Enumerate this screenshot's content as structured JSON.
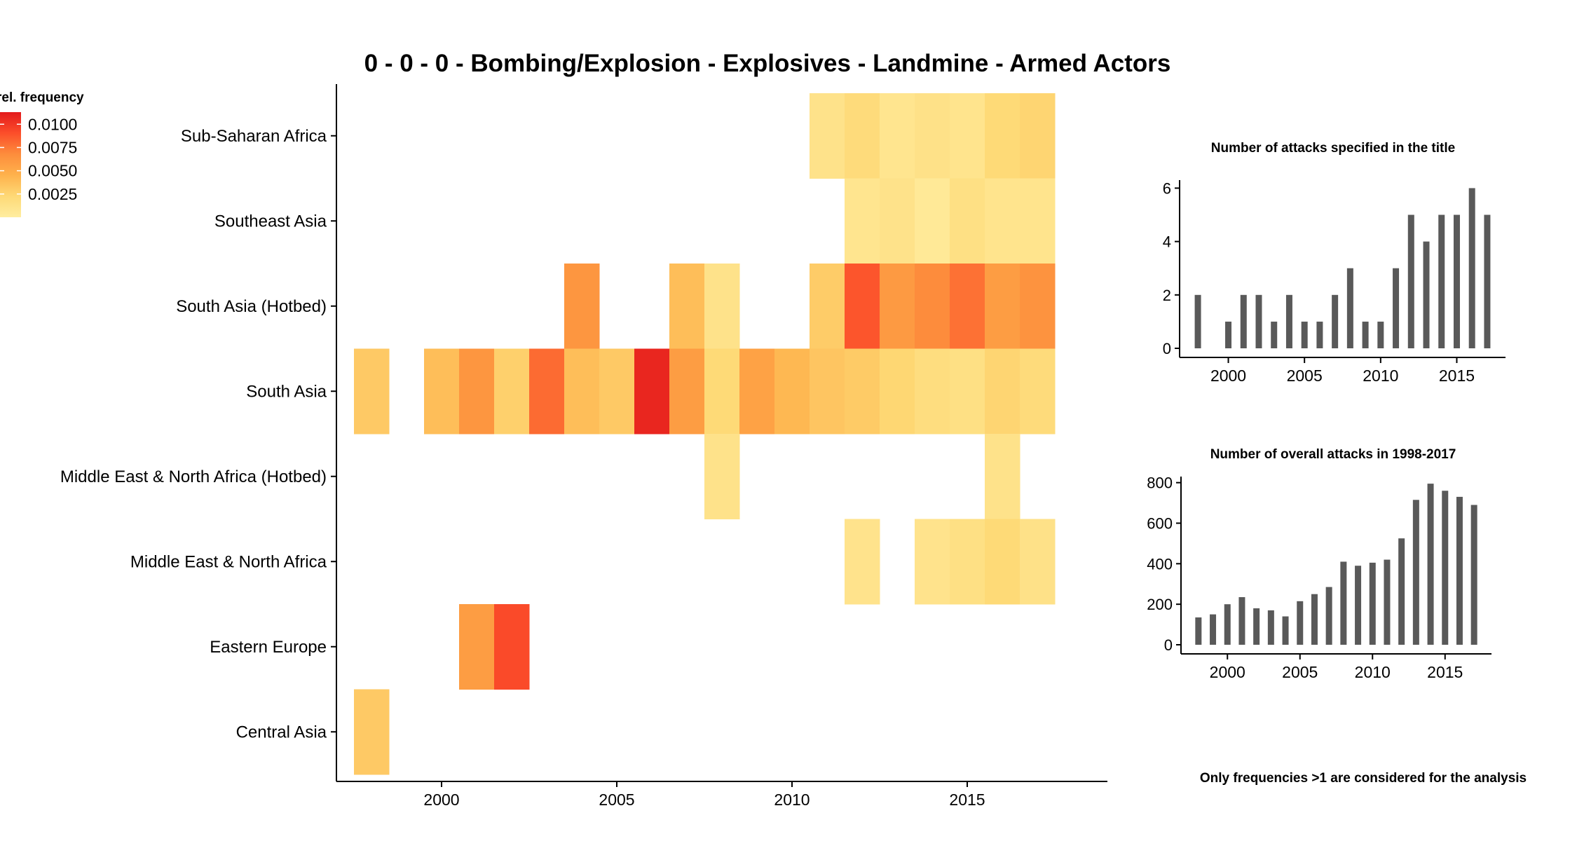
{
  "title": "0 - 0 - 0 - Bombing/Explosion - Explosives - Landmine - Armed Actors",
  "legend": {
    "title": "rel. frequency",
    "ticks": [
      "0.0100",
      "0.0075",
      "0.0050",
      "0.0025"
    ],
    "tick_values": [
      0.01,
      0.0075,
      0.005,
      0.0025
    ],
    "min": 0.0,
    "max": 0.0113,
    "colors": [
      "#ffeda0",
      "#fed976",
      "#feb24c",
      "#fd8d3c",
      "#fc4e2a",
      "#e31a1c"
    ]
  },
  "footnote": "Only frequencies >1 are considered for the analysis",
  "chart_data": [
    {
      "type": "heatmap",
      "title": "0 - 0 - 0 - Bombing/Explosion - Explosives - Landmine - Armed Actors",
      "x_ticks": [
        "2000",
        "2005",
        "2010",
        "2015"
      ],
      "x_tick_values": [
        2000,
        2005,
        2010,
        2015
      ],
      "xlim": [
        1997,
        2018
      ],
      "regions": [
        "Sub-Saharan Africa",
        "Southeast Asia",
        "South Asia (Hotbed)",
        "South Asia",
        "Middle East & North Africa (Hotbed)",
        "Middle East & North Africa",
        "Eastern Europe",
        "Central Asia"
      ],
      "cells": [
        {
          "region": "Sub-Saharan Africa",
          "year": 2011,
          "value": 0.0012
        },
        {
          "region": "Sub-Saharan Africa",
          "year": 2012,
          "value": 0.002
        },
        {
          "region": "Sub-Saharan Africa",
          "year": 2013,
          "value": 0.0009
        },
        {
          "region": "Sub-Saharan Africa",
          "year": 2014,
          "value": 0.0013
        },
        {
          "region": "Sub-Saharan Africa",
          "year": 2015,
          "value": 0.001
        },
        {
          "region": "Sub-Saharan Africa",
          "year": 2016,
          "value": 0.0022
        },
        {
          "region": "Sub-Saharan Africa",
          "year": 2017,
          "value": 0.0025
        },
        {
          "region": "Southeast Asia",
          "year": 2012,
          "value": 0.0009
        },
        {
          "region": "Southeast Asia",
          "year": 2013,
          "value": 0.0012
        },
        {
          "region": "Southeast Asia",
          "year": 2014,
          "value": 0.0005
        },
        {
          "region": "Southeast Asia",
          "year": 2015,
          "value": 0.0015
        },
        {
          "region": "Southeast Asia",
          "year": 2016,
          "value": 0.001
        },
        {
          "region": "Southeast Asia",
          "year": 2017,
          "value": 0.001
        },
        {
          "region": "South Asia (Hotbed)",
          "year": 2004,
          "value": 0.0062
        },
        {
          "region": "South Asia (Hotbed)",
          "year": 2007,
          "value": 0.0038
        },
        {
          "region": "South Asia (Hotbed)",
          "year": 2008,
          "value": 0.0012
        },
        {
          "region": "South Asia (Hotbed)",
          "year": 2011,
          "value": 0.003
        },
        {
          "region": "South Asia (Hotbed)",
          "year": 2012,
          "value": 0.0088
        },
        {
          "region": "South Asia (Hotbed)",
          "year": 2013,
          "value": 0.006
        },
        {
          "region": "South Asia (Hotbed)",
          "year": 2014,
          "value": 0.0068
        },
        {
          "region": "South Asia (Hotbed)",
          "year": 2015,
          "value": 0.0078
        },
        {
          "region": "South Asia (Hotbed)",
          "year": 2016,
          "value": 0.0058
        },
        {
          "region": "South Asia (Hotbed)",
          "year": 2017,
          "value": 0.0064
        },
        {
          "region": "South Asia",
          "year": 1998,
          "value": 0.0032
        },
        {
          "region": "South Asia",
          "year": 2000,
          "value": 0.0038
        },
        {
          "region": "South Asia",
          "year": 2001,
          "value": 0.0062
        },
        {
          "region": "South Asia",
          "year": 2002,
          "value": 0.0028
        },
        {
          "region": "South Asia",
          "year": 2003,
          "value": 0.008
        },
        {
          "region": "South Asia",
          "year": 2004,
          "value": 0.0038
        },
        {
          "region": "South Asia",
          "year": 2005,
          "value": 0.0032
        },
        {
          "region": "South Asia",
          "year": 2006,
          "value": 0.0108
        },
        {
          "region": "South Asia",
          "year": 2007,
          "value": 0.0058
        },
        {
          "region": "South Asia",
          "year": 2008,
          "value": 0.0022
        },
        {
          "region": "South Asia",
          "year": 2009,
          "value": 0.0055
        },
        {
          "region": "South Asia",
          "year": 2010,
          "value": 0.0042
        },
        {
          "region": "South Asia",
          "year": 2011,
          "value": 0.0034
        },
        {
          "region": "South Asia",
          "year": 2012,
          "value": 0.0031
        },
        {
          "region": "South Asia",
          "year": 2013,
          "value": 0.0024
        },
        {
          "region": "South Asia",
          "year": 2014,
          "value": 0.0018
        },
        {
          "region": "South Asia",
          "year": 2015,
          "value": 0.0015
        },
        {
          "region": "South Asia",
          "year": 2016,
          "value": 0.0025
        },
        {
          "region": "South Asia",
          "year": 2017,
          "value": 0.002
        },
        {
          "region": "Middle East & North Africa (Hotbed)",
          "year": 2008,
          "value": 0.0012
        },
        {
          "region": "Middle East & North Africa (Hotbed)",
          "year": 2016,
          "value": 0.0012
        },
        {
          "region": "Middle East & North Africa",
          "year": 2012,
          "value": 0.0011
        },
        {
          "region": "Middle East & North Africa",
          "year": 2014,
          "value": 0.0011
        },
        {
          "region": "Middle East & North Africa",
          "year": 2015,
          "value": 0.0015
        },
        {
          "region": "Middle East & North Africa",
          "year": 2016,
          "value": 0.0022
        },
        {
          "region": "Middle East & North Africa",
          "year": 2017,
          "value": 0.0013
        },
        {
          "region": "Eastern Europe",
          "year": 2001,
          "value": 0.0058
        },
        {
          "region": "Eastern Europe",
          "year": 2002,
          "value": 0.0092
        },
        {
          "region": "Central Asia",
          "year": 1998,
          "value": 0.0032
        }
      ]
    },
    {
      "type": "bar",
      "title": "Number of attacks specified in the title",
      "x": [
        1998,
        2000,
        2001,
        2002,
        2003,
        2004,
        2005,
        2006,
        2007,
        2008,
        2009,
        2010,
        2011,
        2012,
        2013,
        2014,
        2015,
        2016,
        2017
      ],
      "values": [
        2,
        1,
        2,
        2,
        1,
        2,
        1,
        1,
        2,
        3,
        1,
        1,
        3,
        5,
        4,
        5,
        5,
        6,
        5
      ],
      "x_ticks": [
        "2000",
        "2005",
        "2010",
        "2015"
      ],
      "y_ticks": [
        "0",
        "2",
        "4",
        "6"
      ],
      "y_tick_values": [
        0,
        2,
        4,
        6
      ],
      "xlim": [
        1996.8,
        2018.2
      ],
      "ylim": [
        0,
        6.3
      ],
      "color": "#595959"
    },
    {
      "type": "bar",
      "title": "Number of overall attacks in 1998-2017",
      "x": [
        1998,
        1999,
        2000,
        2001,
        2002,
        2003,
        2004,
        2005,
        2006,
        2007,
        2008,
        2009,
        2010,
        2011,
        2012,
        2013,
        2014,
        2015,
        2016,
        2017
      ],
      "values": [
        135,
        150,
        200,
        235,
        180,
        170,
        140,
        215,
        250,
        285,
        410,
        390,
        405,
        420,
        525,
        715,
        795,
        760,
        730,
        690
      ],
      "x_ticks": [
        "2000",
        "2005",
        "2010",
        "2015"
      ],
      "y_ticks": [
        "0",
        "200",
        "400",
        "600",
        "800"
      ],
      "y_tick_values": [
        0,
        200,
        400,
        600,
        800
      ],
      "xlim": [
        1996.8,
        2018.2
      ],
      "ylim": [
        0,
        830
      ],
      "color": "#595959"
    }
  ]
}
